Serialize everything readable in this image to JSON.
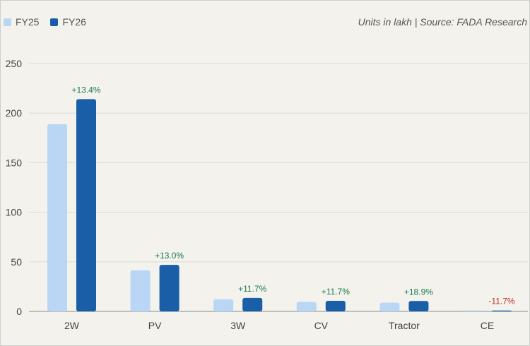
{
  "legend": {
    "items": [
      {
        "label": "FY25",
        "color": "#b9d7f5"
      },
      {
        "label": "FY26",
        "color": "#1a5ea8"
      }
    ]
  },
  "source_note": "Units in lakh | Source: FADA Research",
  "colors": {
    "positive": "#1a7a4c",
    "negative": "#c62828",
    "grid": "#dcdcd6",
    "axis": "#8a8a8a"
  },
  "chart_data": {
    "type": "bar",
    "categories": [
      "2W",
      "PV",
      "3W",
      "CV",
      "Tractor",
      "CE"
    ],
    "series": [
      {
        "name": "FY25",
        "values": [
          188.8,
          41.5,
          12.2,
          9.6,
          8.8,
          1.0
        ],
        "color": "#b9d7f5"
      },
      {
        "name": "FY26",
        "values": [
          214.1,
          46.9,
          13.6,
          10.7,
          10.5,
          0.9
        ],
        "color": "#1a5ea8"
      }
    ],
    "annotations": [
      "+13.4%",
      "+13.0%",
      "+11.7%",
      "+11.7%",
      "+18.9%",
      "-11.7%"
    ],
    "ylim": [
      0,
      250
    ],
    "yticks": [
      0,
      50,
      100,
      150,
      200,
      250
    ],
    "grid": true,
    "legend_position": "top-left"
  }
}
